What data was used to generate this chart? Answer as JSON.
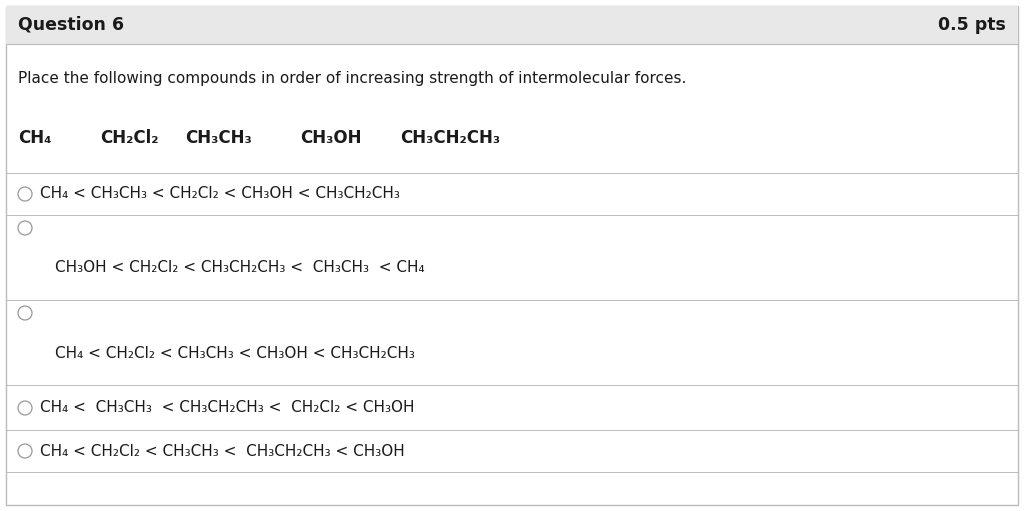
{
  "title": "Question 6",
  "pts": "0.5 pts",
  "question": "Place the following compounds in order of increasing strength of intermolecular forces.",
  "bg_header": "#e8e8e8",
  "bg_body": "#ffffff",
  "border_color": "#bbbbbb",
  "text_color": "#1a1a1a",
  "title_fontsize": 12.5,
  "pts_fontsize": 12.5,
  "question_fontsize": 11,
  "compounds_fontsize": 12,
  "option_fontsize": 11,
  "fig_width": 10.24,
  "fig_height": 5.11,
  "fig_dpi": 100
}
